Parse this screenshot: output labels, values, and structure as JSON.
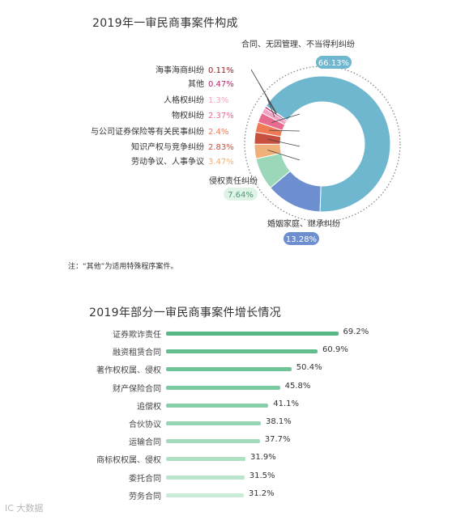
{
  "title1": "2019年一审民商事案件构成",
  "title2": "2019年部分一审民商事案件增长情况",
  "note": "注：“其他”为适用特殊程序案件。",
  "watermark": "IC 大数据",
  "colors": {
    "main": "#6fb6cf",
    "marriage": "#6d8fcf",
    "tort": "#9ad8b9",
    "labor": "#f0b07a",
    "ip": "#c8503f",
    "securities": "#f07a55",
    "property": "#e86a8f",
    "personality": "#f3a3c1",
    "other": "#b5246a",
    "maritime": "#8e1e1e",
    "bar_dark": "#55b885",
    "bar_light": "#c8ecd6"
  },
  "chart_data": [
    {
      "type": "pie",
      "title": "2019年一审民商事案件构成",
      "slices": [
        {
          "label": "合同、无因管理、不当得利纠纷",
          "value": 66.13,
          "display": "66.13%"
        },
        {
          "label": "婚姻家庭、继承纠纷",
          "value": 13.28,
          "display": "13.28%"
        },
        {
          "label": "侵权责任纠纷",
          "value": 7.64,
          "display": "7.64%"
        },
        {
          "label": "劳动争议、人事争议",
          "value": 3.47,
          "display": "3.47%"
        },
        {
          "label": "知识产权与竞争纠纷",
          "value": 2.83,
          "display": "2.83%"
        },
        {
          "label": "与公司证券保险等有关民事纠纷",
          "value": 2.4,
          "display": "2.4%"
        },
        {
          "label": "物权纠纷",
          "value": 2.37,
          "display": "2.37%"
        },
        {
          "label": "人格权纠纷",
          "value": 1.3,
          "display": "1.3%"
        },
        {
          "label": "其他",
          "value": 0.47,
          "display": "0.47%"
        },
        {
          "label": "海事海商纠纷",
          "value": 0.11,
          "display": "0.11%"
        }
      ]
    },
    {
      "type": "bar",
      "title": "2019年部分一审民商事案件增长情况",
      "categories": [
        "证券欺诈责任",
        "融资租赁合同",
        "著作权权属、侵权",
        "财产保险合同",
        "追偿权",
        "合伙协议",
        "运输合同",
        "商标权权属、侵权",
        "委托合同",
        "劳务合同"
      ],
      "values": [
        69.2,
        60.9,
        50.4,
        45.8,
        41.1,
        38.1,
        37.7,
        31.9,
        31.5,
        31.2
      ],
      "labels": [
        "69.2%",
        "60.9%",
        "50.4%",
        "45.8%",
        "41.1%",
        "38.1%",
        "37.7%",
        "31.9%",
        "31.5%",
        "31.2%"
      ],
      "xlim": [
        0,
        70
      ]
    }
  ]
}
